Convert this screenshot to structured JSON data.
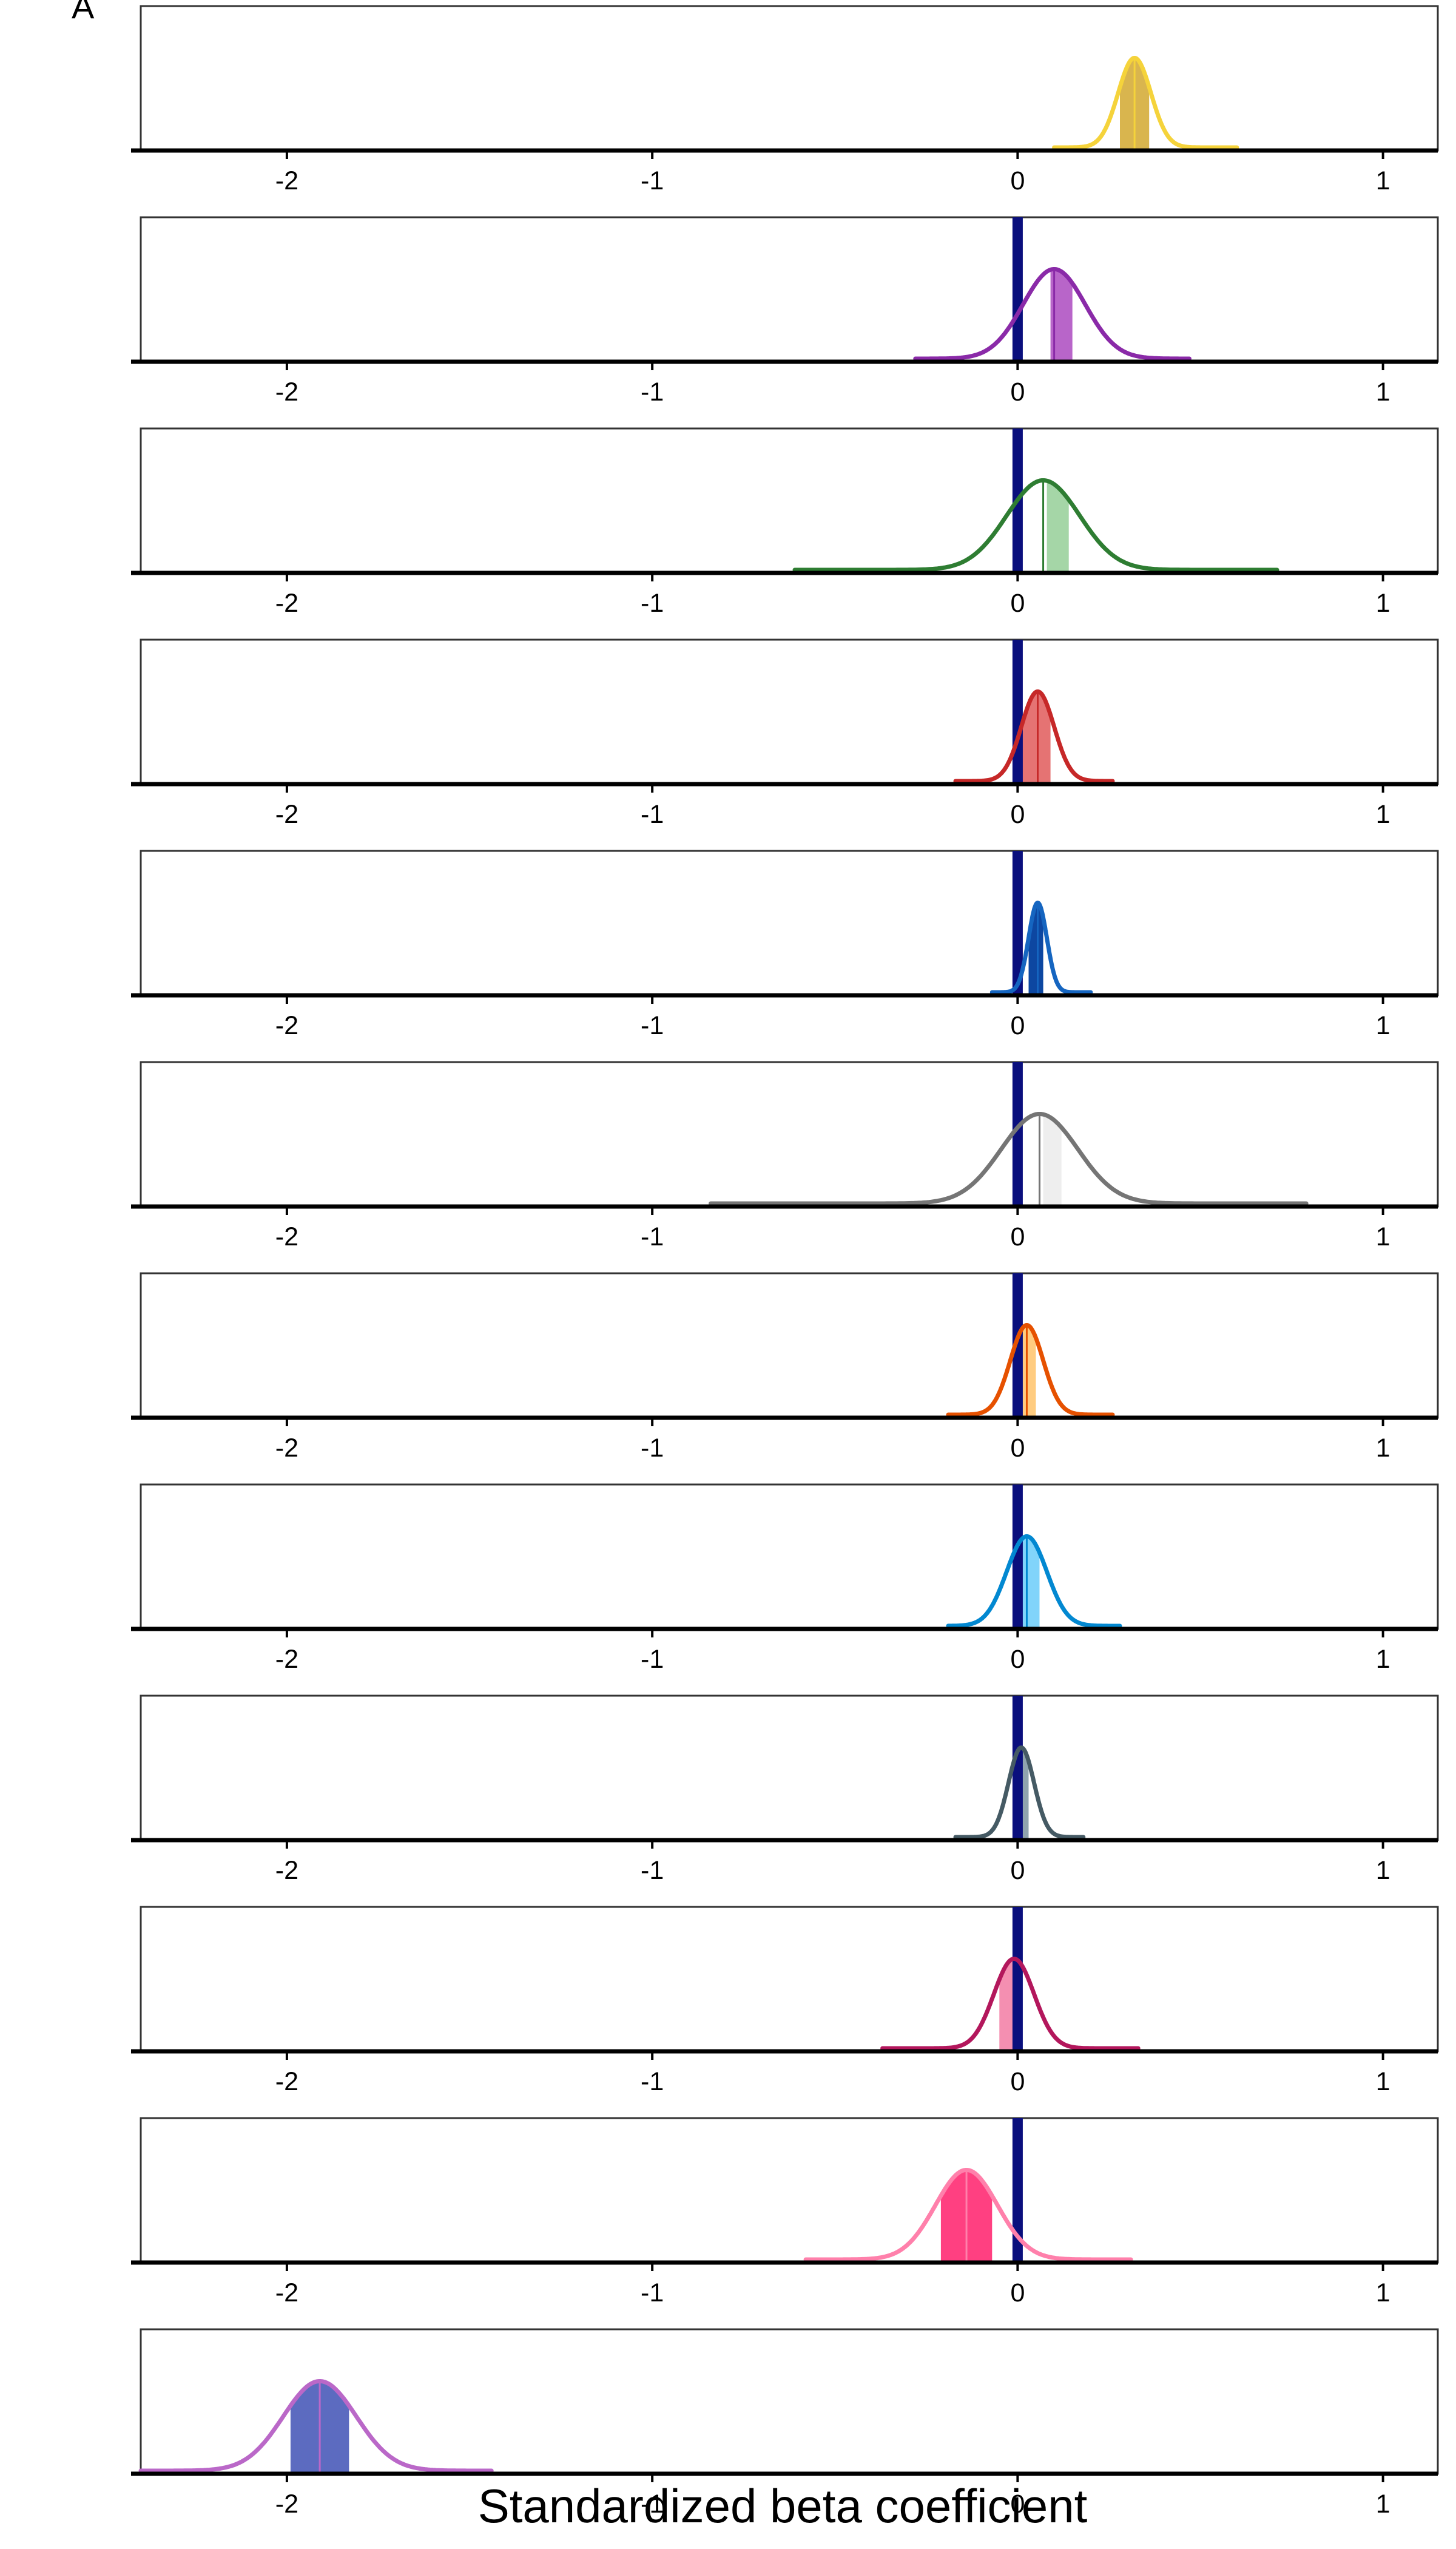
{
  "panel_label": "A",
  "chart_data": {
    "type": "area",
    "subtype": "posterior density ridges (12 stacked panels)",
    "xlabel": "Standardized beta coefficient",
    "ylabel": "",
    "xlim": [
      -2.4,
      1.15
    ],
    "x_ticks": [
      -2,
      -1,
      0,
      1
    ],
    "x_tick_labels": [
      "-2",
      "-1",
      "0",
      "1"
    ],
    "reference_line": {
      "x": 0,
      "color": "#0a0f7d"
    },
    "grid": false,
    "legend": "none",
    "series": [
      {
        "line_color": "#f5d33b",
        "fill_color": "#d9b54e",
        "mean": 0.32,
        "sd": 0.045,
        "min": 0.1,
        "max": 0.6,
        "ci": [
          0.28,
          0.36
        ],
        "zero_line": false
      },
      {
        "line_color": "#8a2aa8",
        "fill_color": "#b865c9",
        "mean": 0.1,
        "sd": 0.085,
        "min": -0.28,
        "max": 0.47,
        "ci": [
          0.09,
          0.15
        ],
        "zero_line": true
      },
      {
        "line_color": "#2e7d32",
        "fill_color": "#a5d6a7",
        "mean": 0.07,
        "sd": 0.1,
        "min": -0.61,
        "max": 0.71,
        "ci": [
          0.08,
          0.14
        ],
        "zero_line": true
      },
      {
        "line_color": "#c62828",
        "fill_color": "#e57373",
        "mean": 0.055,
        "sd": 0.045,
        "min": -0.17,
        "max": 0.26,
        "ci": [
          0.01,
          0.09
        ],
        "zero_line": true
      },
      {
        "line_color": "#1565c0",
        "fill_color": "#0d47a1",
        "mean": 0.055,
        "sd": 0.025,
        "min": -0.07,
        "max": 0.2,
        "ci": [
          0.03,
          0.07
        ],
        "zero_line": true
      },
      {
        "line_color": "#757575",
        "fill_color": "#eeeeee",
        "mean": 0.06,
        "sd": 0.105,
        "min": -0.84,
        "max": 0.79,
        "ci": [
          0.07,
          0.12
        ],
        "zero_line": true
      },
      {
        "line_color": "#e65100",
        "fill_color": "#ffcc80",
        "mean": 0.025,
        "sd": 0.045,
        "min": -0.19,
        "max": 0.26,
        "ci": [
          0.01,
          0.05
        ],
        "zero_line": true
      },
      {
        "line_color": "#0288d1",
        "fill_color": "#81d4fa",
        "mean": 0.025,
        "sd": 0.055,
        "min": -0.19,
        "max": 0.28,
        "ci": [
          0.01,
          0.06
        ],
        "zero_line": true
      },
      {
        "line_color": "#455a64",
        "fill_color": "#90a4ae",
        "mean": 0.01,
        "sd": 0.035,
        "min": -0.17,
        "max": 0.18,
        "ci": [
          -0.01,
          0.03
        ],
        "zero_line": true
      },
      {
        "line_color": "#b3175c",
        "fill_color": "#f48fb1",
        "mean": -0.01,
        "sd": 0.055,
        "min": -0.37,
        "max": 0.33,
        "ci": [
          -0.05,
          0.0
        ],
        "zero_line": true
      },
      {
        "line_color": "#ff80ab",
        "fill_color": "#ff4081",
        "mean": -0.14,
        "sd": 0.085,
        "min": -0.58,
        "max": 0.31,
        "ci": [
          -0.21,
          -0.07
        ],
        "zero_line": true
      },
      {
        "line_color": "#ba68c8",
        "fill_color": "#5c6bc0",
        "mean": -1.91,
        "sd": 0.1,
        "min": -2.4,
        "max": -1.44,
        "ci": [
          -1.99,
          -1.83
        ],
        "zero_line": false
      }
    ]
  }
}
